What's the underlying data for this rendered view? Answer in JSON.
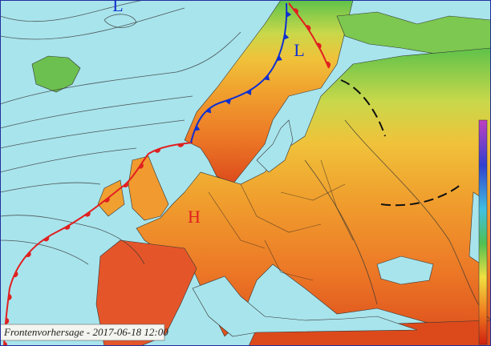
{
  "pressure_centers": [
    {
      "label": "L"
    },
    {
      "label": "L"
    },
    {
      "label": "H"
    }
  ],
  "caption": "Frontenvorhersage - 2017-06-18 12:00"
}
